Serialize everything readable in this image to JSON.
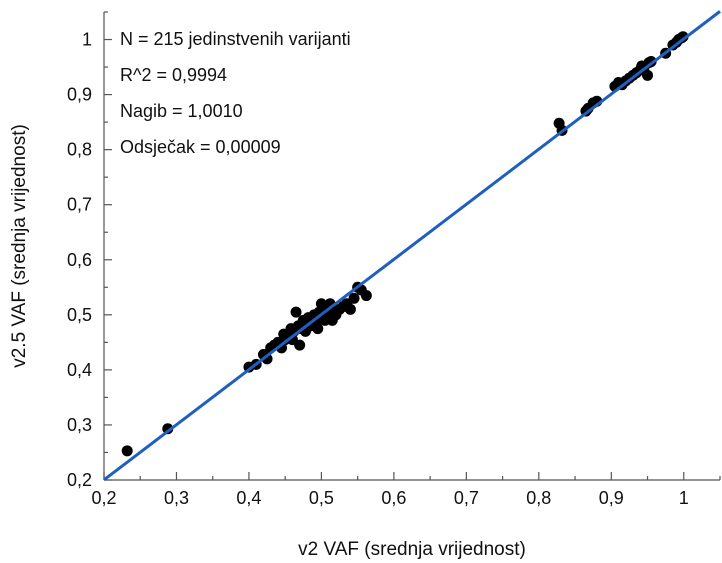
{
  "chart_data": {
    "type": "scatter",
    "xlabel": "v2 VAF (srednja vrijednost)",
    "ylabel": "v2.5 VAF (srednja vrijednost)",
    "xlim": [
      0.2,
      1.05
    ],
    "ylim": [
      0.2,
      1.05
    ],
    "xticks": [
      "0,2",
      "0,3",
      "0,4",
      "0,5",
      "0,6",
      "0,7",
      "0,8",
      "0,9",
      "1"
    ],
    "yticks": [
      "0,2",
      "0,3",
      "0,4",
      "0,5",
      "0,6",
      "0,7",
      "0,8",
      "0,9",
      "1"
    ],
    "annotations": [
      "N = 215 jedinstvenih varijanti",
      "R^2 = 0,9994",
      "Nagib = 1,0010",
      "Odsječak = 0,00009"
    ],
    "fit_line": {
      "slope": 1.001,
      "intercept": 9e-05,
      "color": "#1f5fbf"
    },
    "point_color": "#000000",
    "points": [
      [
        0.232,
        0.253
      ],
      [
        0.288,
        0.293
      ],
      [
        0.4,
        0.405
      ],
      [
        0.41,
        0.41
      ],
      [
        0.42,
        0.428
      ],
      [
        0.425,
        0.42
      ],
      [
        0.43,
        0.44
      ],
      [
        0.435,
        0.445
      ],
      [
        0.44,
        0.45
      ],
      [
        0.445,
        0.44
      ],
      [
        0.448,
        0.465
      ],
      [
        0.45,
        0.455
      ],
      [
        0.455,
        0.46
      ],
      [
        0.458,
        0.475
      ],
      [
        0.46,
        0.455
      ],
      [
        0.462,
        0.47
      ],
      [
        0.465,
        0.505
      ],
      [
        0.468,
        0.48
      ],
      [
        0.47,
        0.445
      ],
      [
        0.472,
        0.475
      ],
      [
        0.475,
        0.49
      ],
      [
        0.478,
        0.47
      ],
      [
        0.48,
        0.485
      ],
      [
        0.482,
        0.495
      ],
      [
        0.485,
        0.48
      ],
      [
        0.487,
        0.49
      ],
      [
        0.49,
        0.5
      ],
      [
        0.492,
        0.485
      ],
      [
        0.495,
        0.475
      ],
      [
        0.497,
        0.505
      ],
      [
        0.5,
        0.52
      ],
      [
        0.502,
        0.495
      ],
      [
        0.505,
        0.49
      ],
      [
        0.507,
        0.51
      ],
      [
        0.51,
        0.5
      ],
      [
        0.512,
        0.52
      ],
      [
        0.515,
        0.49
      ],
      [
        0.518,
        0.505
      ],
      [
        0.52,
        0.5
      ],
      [
        0.525,
        0.51
      ],
      [
        0.53,
        0.515
      ],
      [
        0.535,
        0.52
      ],
      [
        0.54,
        0.51
      ],
      [
        0.545,
        0.53
      ],
      [
        0.55,
        0.55
      ],
      [
        0.555,
        0.545
      ],
      [
        0.562,
        0.535
      ],
      [
        0.828,
        0.848
      ],
      [
        0.832,
        0.835
      ],
      [
        0.865,
        0.87
      ],
      [
        0.868,
        0.875
      ],
      [
        0.875,
        0.885
      ],
      [
        0.88,
        0.888
      ],
      [
        0.905,
        0.915
      ],
      [
        0.91,
        0.922
      ],
      [
        0.915,
        0.918
      ],
      [
        0.92,
        0.925
      ],
      [
        0.925,
        0.93
      ],
      [
        0.93,
        0.935
      ],
      [
        0.935,
        0.94
      ],
      [
        0.94,
        0.945
      ],
      [
        0.942,
        0.952
      ],
      [
        0.945,
        0.948
      ],
      [
        0.95,
        0.935
      ],
      [
        0.952,
        0.958
      ],
      [
        0.955,
        0.96
      ],
      [
        0.975,
        0.975
      ],
      [
        0.985,
        0.99
      ],
      [
        0.99,
        0.995
      ],
      [
        0.993,
        1.0
      ],
      [
        0.997,
        1.003
      ],
      [
        0.999,
        1.005
      ]
    ]
  }
}
